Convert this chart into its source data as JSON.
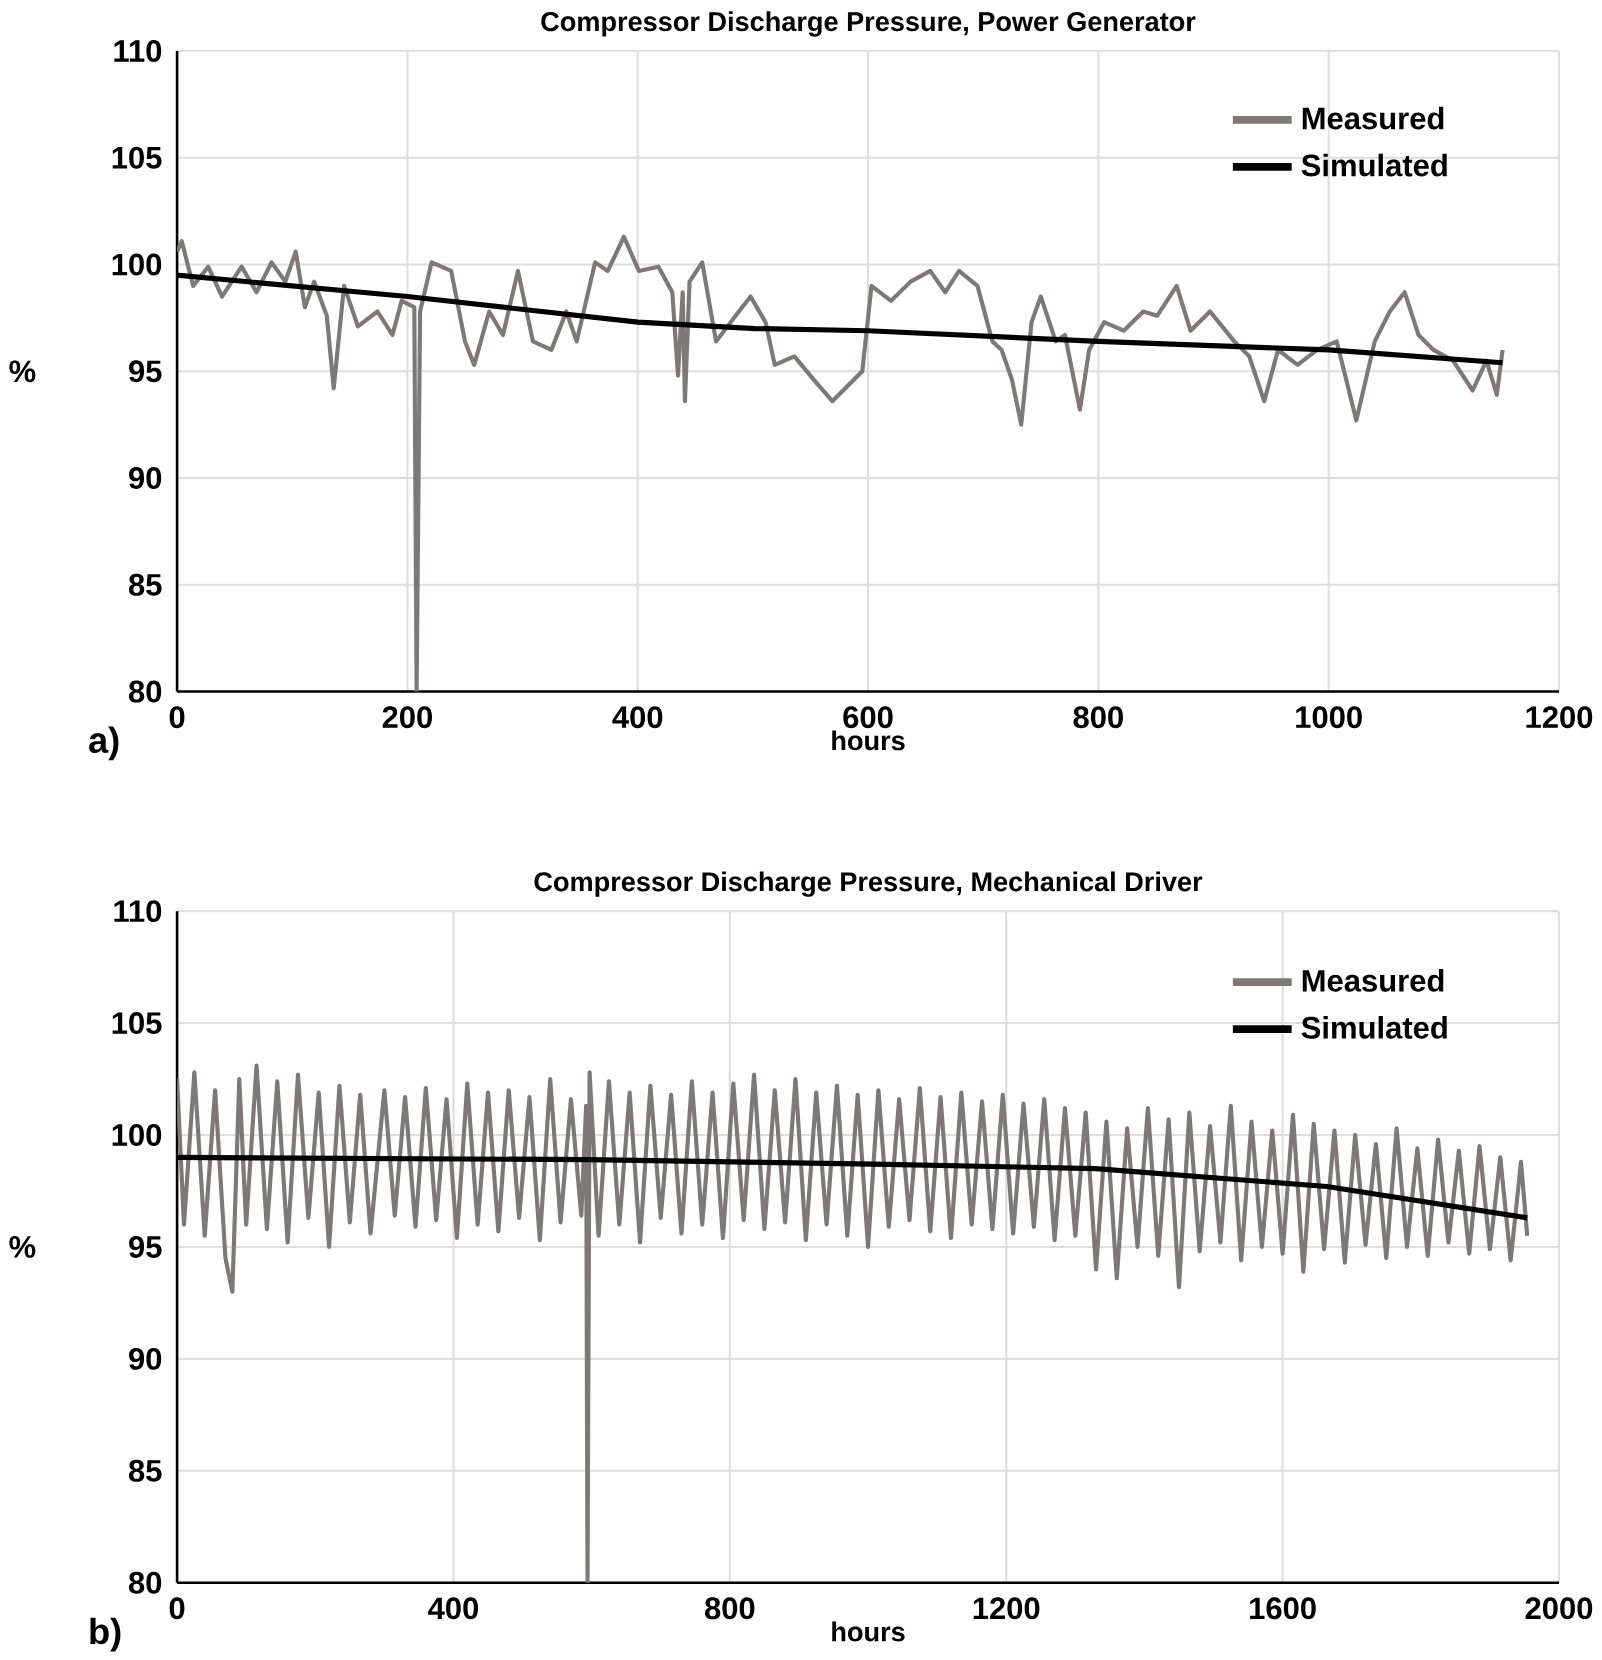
{
  "chart_data": [
    {
      "type": "line",
      "title": "Compressor Discharge Pressure, Power Generator",
      "xlabel": "hours",
      "ylabel": "%",
      "annotations": [
        "a)"
      ],
      "xlim": [
        0,
        1200
      ],
      "ylim": [
        80,
        110
      ],
      "xticks": [
        0,
        200,
        400,
        600,
        800,
        1000,
        1200
      ],
      "yticks": [
        80,
        85,
        90,
        95,
        100,
        105,
        110
      ],
      "grid": true,
      "legend": "top right",
      "marker": "none",
      "line_style": "solid",
      "series": [
        {
          "name": "Measured",
          "color": "#7f7878",
          "x": [
            0,
            4,
            14,
            27,
            39,
            56,
            69,
            82,
            94,
            103,
            111,
            119,
            130,
            136,
            145,
            157,
            174,
            187,
            195,
            206,
            208,
            211,
            221,
            238,
            250,
            258,
            271,
            283,
            296,
            309,
            325,
            338,
            347,
            363,
            374,
            388,
            401,
            418,
            430,
            435,
            439,
            441,
            445,
            456,
            468,
            485,
            498,
            511,
            519,
            536,
            553,
            569,
            582,
            595,
            603,
            620,
            637,
            654,
            667,
            679,
            695,
            708,
            716,
            725,
            733,
            742,
            750,
            763,
            771,
            784,
            792,
            805,
            822,
            839,
            851,
            868,
            880,
            897,
            918,
            931,
            944,
            956,
            973,
            990,
            1007,
            1024,
            1040,
            1053,
            1066,
            1078,
            1091,
            1108,
            1125,
            1137,
            1146,
            1151
          ],
          "values": [
            100.6,
            101.1,
            99,
            99.9,
            98.5,
            99.9,
            98.7,
            100.1,
            99.2,
            100.6,
            98,
            99.2,
            97.6,
            94.2,
            99,
            97.1,
            97.8,
            96.7,
            98.3,
            98,
            80,
            97.8,
            100.1,
            99.7,
            96.4,
            95.3,
            97.8,
            96.7,
            99.7,
            96.4,
            96,
            97.8,
            96.4,
            100.1,
            99.7,
            101.3,
            99.7,
            99.9,
            98.7,
            94.8,
            98.7,
            93.6,
            99.2,
            100.1,
            96.4,
            97.6,
            98.5,
            97.3,
            95.3,
            95.7,
            94.6,
            93.6,
            94.3,
            95,
            99,
            98.3,
            99.2,
            99.7,
            98.7,
            99.7,
            99,
            96.4,
            96,
            94.6,
            92.5,
            97.3,
            98.5,
            96.4,
            96.7,
            93.2,
            96,
            97.3,
            96.9,
            97.8,
            97.6,
            99,
            96.9,
            97.8,
            96.4,
            95.7,
            93.6,
            96,
            95.3,
            96,
            96.4,
            92.7,
            96.4,
            97.8,
            98.7,
            96.7,
            96,
            95.5,
            94.1,
            95.5,
            93.9,
            96
          ]
        },
        {
          "name": "Simulated",
          "color": "#000000",
          "x": [
            0,
            200,
            400,
            502,
            600,
            800,
            1000,
            1151
          ],
          "values": [
            99.5,
            98.5,
            97.3,
            97,
            96.9,
            96.4,
            96,
            95.4
          ]
        }
      ]
    },
    {
      "type": "line",
      "title": "Compressor Discharge Pressure, Mechanical Driver",
      "xlabel": "hours",
      "ylabel": "%",
      "annotations": [
        "b)"
      ],
      "xlim": [
        0,
        2000
      ],
      "ylim": [
        80,
        110
      ],
      "xticks": [
        0,
        400,
        800,
        1200,
        1600,
        2000
      ],
      "yticks": [
        80,
        85,
        90,
        95,
        100,
        105,
        110
      ],
      "grid": true,
      "legend": "top right",
      "marker": "none",
      "line_style": "solid",
      "series": [
        {
          "name": "Measured",
          "color": "#7f7878",
          "x": [
            0,
            10,
            25,
            40,
            55,
            70,
            80,
            90,
            100,
            115,
            130,
            145,
            160,
            175,
            190,
            205,
            220,
            235,
            250,
            265,
            280,
            300,
            315,
            330,
            345,
            360,
            375,
            390,
            405,
            420,
            435,
            450,
            465,
            480,
            495,
            510,
            525,
            540,
            555,
            570,
            585,
            592,
            594,
            597,
            610,
            625,
            640,
            655,
            670,
            685,
            700,
            715,
            730,
            745,
            760,
            775,
            790,
            805,
            820,
            835,
            850,
            865,
            880,
            895,
            910,
            925,
            940,
            955,
            970,
            985,
            1000,
            1015,
            1030,
            1045,
            1060,
            1075,
            1090,
            1105,
            1120,
            1135,
            1150,
            1165,
            1180,
            1195,
            1210,
            1225,
            1240,
            1255,
            1270,
            1285,
            1300,
            1315,
            1330,
            1345,
            1360,
            1375,
            1390,
            1405,
            1420,
            1435,
            1450,
            1465,
            1480,
            1495,
            1510,
            1525,
            1540,
            1555,
            1570,
            1585,
            1600,
            1615,
            1630,
            1645,
            1660,
            1675,
            1690,
            1705,
            1720,
            1735,
            1750,
            1765,
            1780,
            1795,
            1810,
            1825,
            1840,
            1855,
            1870,
            1885,
            1900,
            1915,
            1930,
            1945,
            1954
          ],
          "values": [
            102.5,
            96.0,
            102.8,
            95.5,
            102.0,
            94.5,
            93.0,
            102.5,
            96.0,
            103.1,
            95.8,
            102.4,
            95.2,
            102.7,
            96.3,
            101.9,
            95.0,
            102.2,
            96.1,
            101.8,
            95.6,
            102.0,
            96.4,
            101.7,
            95.9,
            102.1,
            96.2,
            101.6,
            95.4,
            102.3,
            96.0,
            101.9,
            95.7,
            102.0,
            96.3,
            101.7,
            95.3,
            102.5,
            96.1,
            101.6,
            96.4,
            101.3,
            80.0,
            102.8,
            95.5,
            102.4,
            96.0,
            101.9,
            95.2,
            102.2,
            96.3,
            101.8,
            95.6,
            102.4,
            96.0,
            101.9,
            95.4,
            102.3,
            96.2,
            102.7,
            95.8,
            102.0,
            96.1,
            102.5,
            95.3,
            101.9,
            96.0,
            102.2,
            95.5,
            101.8,
            95.0,
            102.0,
            95.9,
            101.6,
            96.2,
            102.1,
            95.7,
            101.7,
            95.4,
            101.9,
            96.0,
            101.5,
            95.8,
            101.8,
            95.6,
            101.4,
            95.9,
            101.6,
            95.3,
            101.2,
            95.5,
            101.0,
            94.0,
            100.6,
            93.6,
            100.3,
            95.0,
            101.2,
            94.6,
            100.7,
            93.2,
            101.0,
            94.8,
            100.4,
            95.2,
            101.3,
            94.4,
            100.6,
            95.0,
            100.2,
            94.7,
            100.9,
            93.9,
            100.5,
            94.9,
            100.2,
            94.3,
            100.0,
            95.1,
            99.6,
            94.5,
            100.3,
            95.0,
            99.4,
            94.6,
            99.8,
            95.2,
            99.3,
            94.7,
            99.5,
            94.9,
            99.0,
            94.4,
            98.8,
            95.5
          ]
        },
        {
          "name": "Simulated",
          "color": "#000000",
          "x": [
            0,
            594,
            1007,
            1329,
            1664,
            1954
          ],
          "values": [
            99.0,
            98.9,
            98.7,
            98.5,
            97.7,
            96.3
          ]
        }
      ]
    }
  ]
}
